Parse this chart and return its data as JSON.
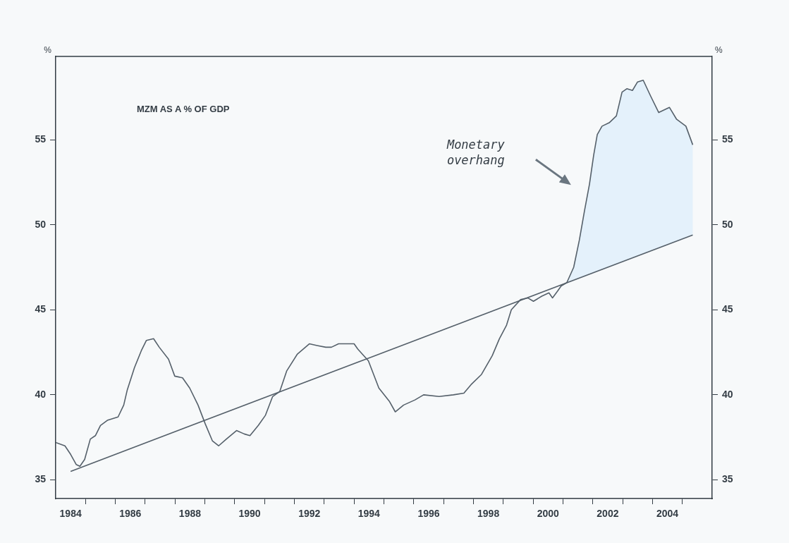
{
  "chart_data": {
    "type": "line",
    "title": "MZM AS A % OF GDP",
    "ylabel": "%",
    "y2label": "%",
    "xlim": [
      1984,
      2006
    ],
    "ylim": [
      33.9,
      59.9
    ],
    "y2lim": [
      33.9,
      59.9
    ],
    "xticks": [
      {
        "value": 1984.5,
        "label": "1984"
      },
      {
        "value": 1985,
        "label": null
      },
      {
        "value": 1986,
        "label": null
      },
      {
        "value": 1986.5,
        "label": "1986"
      },
      {
        "value": 1987,
        "label": null
      },
      {
        "value": 1988,
        "label": null
      },
      {
        "value": 1988.5,
        "label": "1988"
      },
      {
        "value": 1989,
        "label": null
      },
      {
        "value": 1990,
        "label": null
      },
      {
        "value": 1990.5,
        "label": "1990"
      },
      {
        "value": 1991,
        "label": null
      },
      {
        "value": 1992,
        "label": null
      },
      {
        "value": 1992.5,
        "label": "1992"
      },
      {
        "value": 1993,
        "label": null
      },
      {
        "value": 1994,
        "label": null
      },
      {
        "value": 1994.5,
        "label": "1994"
      },
      {
        "value": 1995,
        "label": null
      },
      {
        "value": 1996,
        "label": null
      },
      {
        "value": 1996.5,
        "label": "1996"
      },
      {
        "value": 1997,
        "label": null
      },
      {
        "value": 1998,
        "label": null
      },
      {
        "value": 1998.5,
        "label": "1998"
      },
      {
        "value": 1999,
        "label": null
      },
      {
        "value": 2000,
        "label": null
      },
      {
        "value": 2000.5,
        "label": "2000"
      },
      {
        "value": 2001,
        "label": null
      },
      {
        "value": 2002,
        "label": null
      },
      {
        "value": 2002.5,
        "label": "2002"
      },
      {
        "value": 2003,
        "label": null
      },
      {
        "value": 2004,
        "label": null
      },
      {
        "value": 2004.5,
        "label": "2004"
      },
      {
        "value": 2005,
        "label": null
      }
    ],
    "yticks": [
      35,
      40,
      45,
      50,
      55
    ],
    "y2ticks": [
      35,
      40,
      45,
      50,
      55
    ],
    "grid": false,
    "legend": false,
    "marker": "none",
    "line_style": "solid",
    "annotations": [
      "Monetary\noverhang"
    ],
    "series": [
      {
        "type": "area",
        "color": "#e4f1fb",
        "x": [
          2001.13,
          2001.36,
          2001.55,
          2001.72,
          2001.89,
          2002.03,
          2002.15,
          2002.31,
          2002.55,
          2002.79,
          2002.98,
          2003.14,
          2003.33,
          2003.5,
          2003.69,
          2003.93,
          2004.21,
          2004.57,
          2004.81,
          2005.12,
          2005.35
        ],
        "values": [
          46.6,
          47.5,
          49.1,
          50.8,
          52.4,
          54.1,
          55.3,
          55.8,
          56.0,
          56.4,
          57.8,
          58.0,
          57.9,
          58.4,
          58.5,
          57.6,
          56.6,
          56.9,
          56.2,
          55.8,
          54.7
        ]
      },
      {
        "color": "#55606a",
        "x": [
          1984.5,
          2005.35
        ],
        "values": [
          35.5,
          49.4
        ]
      },
      {
        "color": "#55606a",
        "x": [
          1984.0,
          1984.31,
          1984.5,
          1984.69,
          1984.81,
          1984.97,
          1985.16,
          1985.33,
          1985.5,
          1985.73,
          1986.09,
          1986.28,
          1986.4,
          1986.64,
          1986.87,
          1987.04,
          1987.28,
          1987.47,
          1987.78,
          1987.99,
          1988.25,
          1988.49,
          1988.77,
          1989.01,
          1989.25,
          1989.46,
          1989.72,
          1990.06,
          1990.32,
          1990.51,
          1990.79,
          1991.03,
          1991.27,
          1991.51,
          1991.74,
          1992.1,
          1992.5,
          1992.76,
          1993.05,
          1993.24,
          1993.48,
          1994.0,
          1994.12,
          1994.48,
          1994.83,
          1995.19,
          1995.38,
          1995.66,
          1996.04,
          1996.33,
          1996.85,
          1997.33,
          1997.68,
          1997.92,
          1998.27,
          1998.63,
          1998.87,
          1999.11,
          1999.27,
          1999.58,
          1999.82,
          2000.01,
          2000.29,
          2000.53,
          2000.65,
          2000.82,
          2000.94,
          2001.13,
          2001.36,
          2001.55,
          2001.72,
          2001.89,
          2002.03,
          2002.15,
          2002.31,
          2002.55,
          2002.79,
          2002.98,
          2003.14,
          2003.33,
          2003.5,
          2003.69,
          2003.93,
          2004.21,
          2004.57,
          2004.81,
          2005.12,
          2005.35
        ],
        "values": [
          37.2,
          37.0,
          36.5,
          35.9,
          35.8,
          36.2,
          37.4,
          37.6,
          38.2,
          38.5,
          38.7,
          39.4,
          40.3,
          41.6,
          42.6,
          43.2,
          43.3,
          42.8,
          42.1,
          41.1,
          41.0,
          40.4,
          39.4,
          38.3,
          37.3,
          37.0,
          37.4,
          37.9,
          37.7,
          37.6,
          38.2,
          38.8,
          39.9,
          40.2,
          41.4,
          42.4,
          43.0,
          42.9,
          42.8,
          42.8,
          43.0,
          43.0,
          42.7,
          42.0,
          40.4,
          39.6,
          39.0,
          39.4,
          39.7,
          40.0,
          39.9,
          40.0,
          40.1,
          40.6,
          41.2,
          42.3,
          43.3,
          44.1,
          45.0,
          45.6,
          45.7,
          45.5,
          45.8,
          46.0,
          45.7,
          46.1,
          46.4,
          46.6,
          47.5,
          49.1,
          50.8,
          52.4,
          54.1,
          55.3,
          55.8,
          56.0,
          56.4,
          57.8,
          58.0,
          57.9,
          58.4,
          58.5,
          57.6,
          56.6,
          56.9,
          56.2,
          55.8,
          54.7
        ]
      }
    ]
  }
}
